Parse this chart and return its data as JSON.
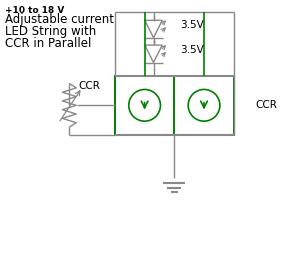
{
  "bg_color": "#ffffff",
  "text_color": "#000000",
  "gray_color": "#888888",
  "green_color": "#008000",
  "label_voltage1": "3.5V",
  "label_voltage2": "3.5V",
  "label_ccr_left": "CCR",
  "label_ccr_right": "CCR",
  "label_top": "+10 to 18 V",
  "label_main1": "Adjustable current",
  "label_main2": "LED String with",
  "label_main3": "CCR in Parallel",
  "figsize": [
    2.82,
    2.75
  ],
  "dpi": 100
}
